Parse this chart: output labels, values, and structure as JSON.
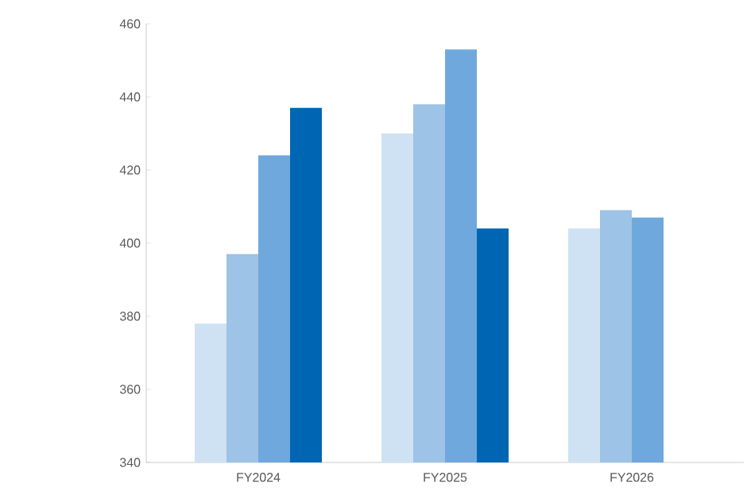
{
  "chart_data": {
    "type": "bar",
    "categories": [
      "FY2024",
      "FY2025",
      "FY2026"
    ],
    "series": [
      {
        "color": "#cfe2f3",
        "values": [
          378,
          430,
          404
        ]
      },
      {
        "color": "#9dc3e6",
        "values": [
          397,
          438,
          409
        ]
      },
      {
        "color": "#6fa8dc",
        "values": [
          424,
          453,
          407
        ]
      },
      {
        "color": "#0066b3",
        "values": [
          437,
          404,
          null
        ]
      }
    ],
    "ylim": [
      340,
      460
    ],
    "yticks": [
      340,
      360,
      380,
      400,
      420,
      440,
      460
    ]
  }
}
